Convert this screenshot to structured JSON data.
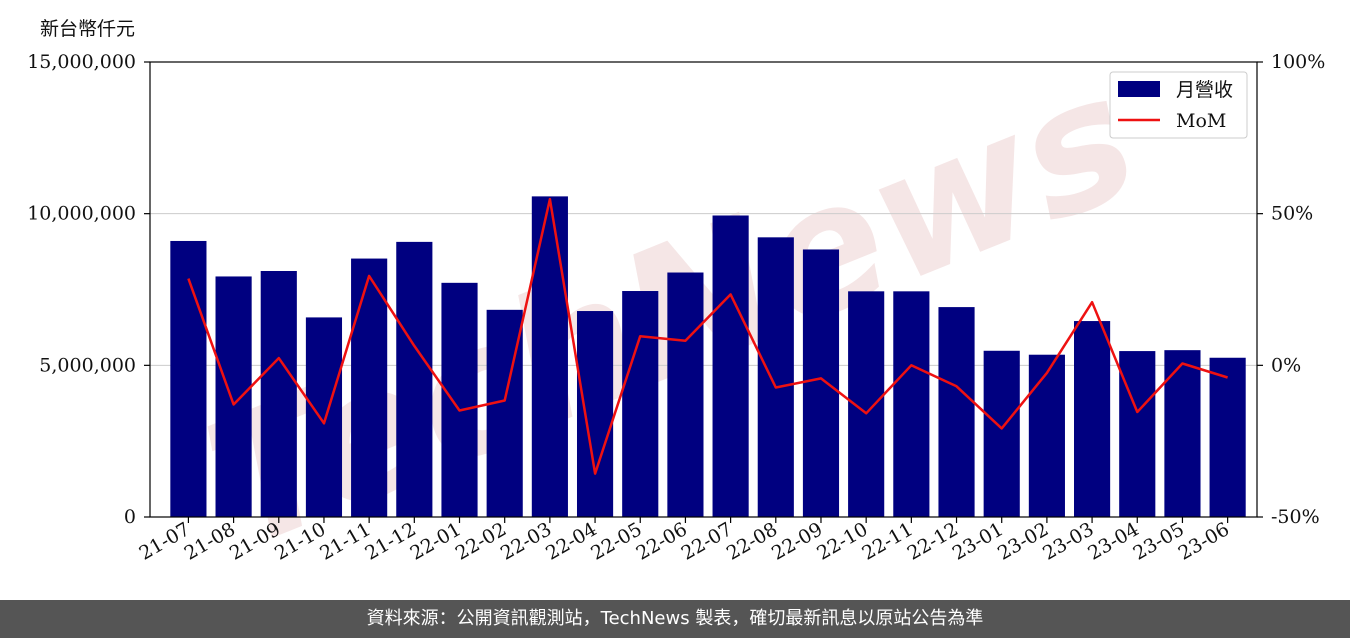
{
  "chart_data": {
    "type": "bar",
    "ylabel": "新台幣仟元",
    "categories": [
      "21-07",
      "21-08",
      "21-09",
      "21-10",
      "21-11",
      "21-12",
      "22-01",
      "22-02",
      "22-03",
      "22-04",
      "22-05",
      "22-06",
      "22-07",
      "22-08",
      "22-09",
      "22-10",
      "22-11",
      "22-12",
      "23-01",
      "23-02",
      "23-03",
      "23-04",
      "23-05",
      "23-06"
    ],
    "series": [
      {
        "name": "月營收",
        "type": "bar",
        "axis": "left",
        "color": "#000080",
        "values": [
          9100000,
          7930000,
          8110000,
          6580000,
          8520000,
          9070000,
          7720000,
          6830000,
          10570000,
          6790000,
          7450000,
          8060000,
          9940000,
          9220000,
          8820000,
          7440000,
          7440000,
          6920000,
          5480000,
          5350000,
          6460000,
          5470000,
          5500000,
          5250000
        ]
      },
      {
        "name": "MoM",
        "type": "line",
        "axis": "right",
        "color": "#ee1111",
        "values": [
          28.6,
          -12.9,
          2.4,
          -19.1,
          29.5,
          6.4,
          -14.9,
          -11.6,
          54.8,
          -35.7,
          9.6,
          8.1,
          23.4,
          -7.3,
          -4.3,
          -15.8,
          0.0,
          -6.9,
          -20.8,
          -2.5,
          20.8,
          -15.4,
          0.6,
          -4.0
        ]
      }
    ],
    "y_left": {
      "min": 0,
      "max": 15000000,
      "ticks": [
        0,
        5000000,
        10000000,
        15000000
      ],
      "tick_labels": [
        "0",
        "5,000,000",
        "10,000,000",
        "15,000,000"
      ]
    },
    "y_right": {
      "min": -50,
      "max": 100,
      "ticks": [
        -50,
        0,
        50,
        100
      ],
      "tick_labels": [
        "-50%",
        "0%",
        "50%",
        "100%"
      ]
    },
    "grid": "horizontal",
    "legend": "top-right"
  },
  "watermark": "TechNews",
  "footer": "資料來源：公開資訊觀測站，TechNews 製表，確切最新訊息以原站公告為準"
}
